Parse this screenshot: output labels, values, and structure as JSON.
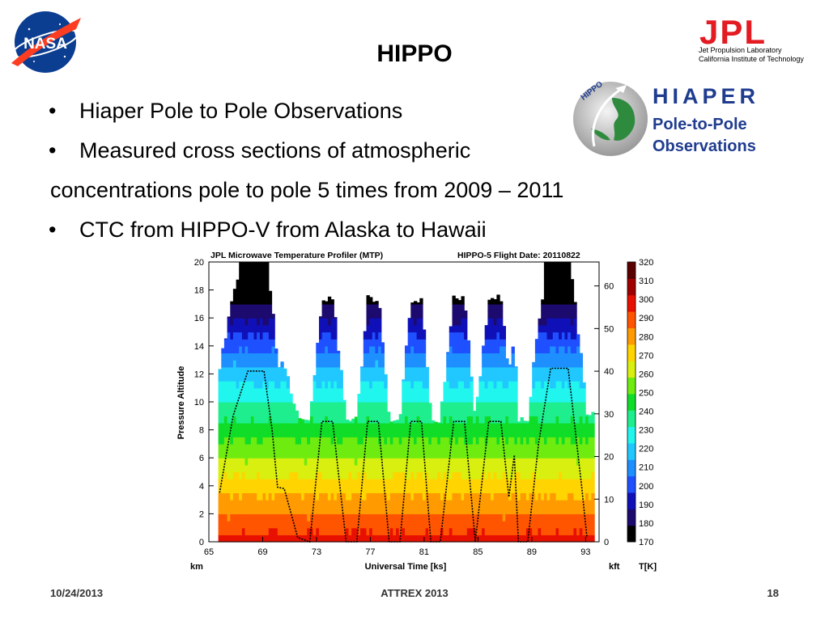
{
  "slide": {
    "title": "HIPPO",
    "bullets": [
      {
        "marker": "•",
        "text": "Hiaper Pole to Pole Observations"
      },
      {
        "marker": "•",
        "text": "Measured cross sections of atmospheric"
      },
      {
        "marker": "",
        "text": "concentrations pole to pole 5 times from 2009 – 2011"
      },
      {
        "marker": "•",
        "text": "CTC from HIPPO-V from Alaska to Hawaii"
      }
    ],
    "footer": {
      "date": "10/24/2013",
      "center": "ATTREX 2013",
      "page": "18"
    }
  },
  "logos": {
    "nasa": {
      "text": "NASA",
      "icon": "nasa-meatball-logo"
    },
    "jpl": {
      "mark": "JPL",
      "line1": "Jet Propulsion Laboratory",
      "line2": "California Institute of Technology",
      "color": "#e31b23"
    },
    "hippo": {
      "ring_text": "HIPPO",
      "name_line1": "HIAPER",
      "name_line2": "Pole-to-Pole",
      "name_line3": "Observations",
      "color": "#1f3c8f",
      "icon": "globe-airplane-emblem"
    }
  },
  "chart_data": {
    "type": "heatmap",
    "title": "JPL Microwave Temperature Profiler (MTP)",
    "subtitle": "HIPPO-5  Flight Date: 20110822",
    "xlabel": "Universal Time [ks]",
    "x_unit_left": "km",
    "x_unit_right": "kft",
    "ylabel": "Pressure Altitude",
    "xlim": [
      65,
      94
    ],
    "ylim": [
      0,
      20
    ],
    "x_ticks": [
      65,
      69,
      73,
      77,
      81,
      85,
      89,
      93
    ],
    "y_ticks": [
      0,
      2,
      4,
      6,
      8,
      10,
      12,
      14,
      16,
      18,
      20
    ],
    "y2_ticks_kft": [
      0,
      10,
      20,
      30,
      40,
      50,
      60
    ],
    "colorbar": {
      "label": "T[K]",
      "ticks": [
        170,
        180,
        190,
        200,
        210,
        220,
        230,
        240,
        250,
        260,
        270,
        280,
        290,
        300,
        310,
        320
      ],
      "colors": [
        "#000000",
        "#1c0a6e",
        "#1010b8",
        "#1f50ff",
        "#1e8fff",
        "#20c8ff",
        "#20f5ee",
        "#1eee8e",
        "#10dd28",
        "#6eec10",
        "#d8ef10",
        "#ffd400",
        "#ff9a00",
        "#ff5500",
        "#e81000",
        "#a00000",
        "#5a0000"
      ]
    },
    "flight_track_km": {
      "x": [
        65.8,
        66.8,
        67.9,
        69.1,
        69.7,
        70.1,
        70.6,
        71.6,
        72.5,
        73.4,
        74.2,
        75.2,
        76.0,
        76.8,
        77.6,
        78.4,
        79.2,
        80.0,
        80.8,
        81.5,
        82.2,
        83.2,
        84.0,
        84.8,
        85.8,
        86.7,
        87.3,
        87.7,
        88.0,
        88.7,
        89.5,
        90.4,
        91.7,
        92.7,
        93.1
      ],
      "y": [
        3.5,
        9.0,
        12.2,
        12.2,
        8.0,
        3.9,
        3.8,
        0.3,
        0.0,
        8.6,
        8.6,
        0.0,
        0.0,
        8.6,
        8.6,
        0.0,
        0.0,
        8.6,
        8.6,
        0.0,
        0.0,
        8.6,
        8.6,
        0.0,
        8.6,
        8.6,
        3.2,
        6.2,
        0.0,
        0.0,
        7.0,
        12.4,
        12.4,
        4.0,
        0.3
      ]
    }
  }
}
